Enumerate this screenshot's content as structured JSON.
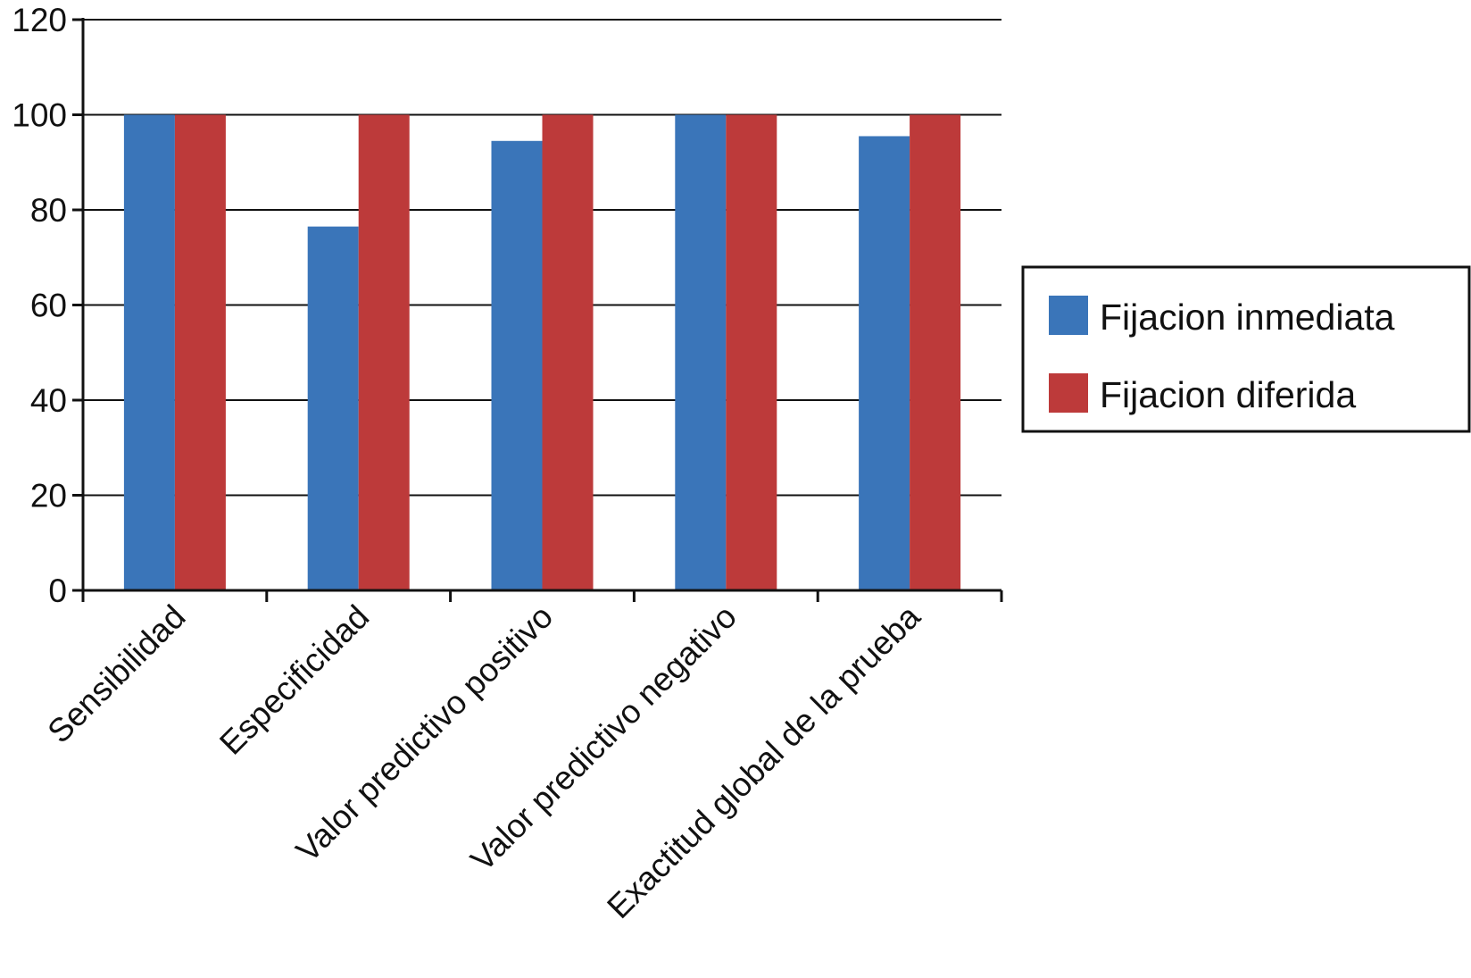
{
  "chart_data": {
    "type": "bar",
    "categories": [
      "Sensibilidad",
      "Especificidad",
      "Valor predictivo positivo",
      "Valor predictivo negativo",
      "Exactitud global de la prueba"
    ],
    "series": [
      {
        "name": "Fijacion inmediata",
        "color": "#3a75b9",
        "values": [
          100,
          76.5,
          94.5,
          100,
          95.5
        ]
      },
      {
        "name": "Fijacion diferida",
        "color": "#bd3a3a",
        "values": [
          100,
          100,
          100,
          100,
          100
        ]
      }
    ],
    "title": "",
    "xlabel": "",
    "ylabel": "",
    "ylim": [
      0,
      120
    ],
    "yticks": [
      "0",
      "20",
      "40",
      "60",
      "80",
      "100",
      "120"
    ],
    "grid": true,
    "legend_position": "right"
  }
}
